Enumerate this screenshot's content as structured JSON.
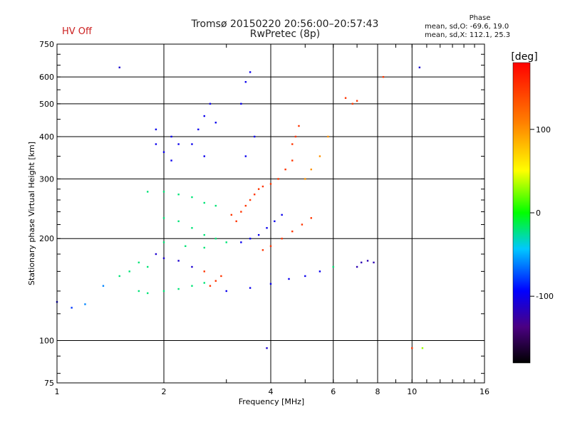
{
  "header": {
    "title_line1": "Tromsø 20150220 20:56:00–20:57:43",
    "title_line2": "RwPretec (8p)",
    "status": "HV Off"
  },
  "phase_info": {
    "title": "Phase",
    "line1": "mean, sd,O: -69.6, 19.0",
    "line2": "mean, sd,X: 112.1, 25.3"
  },
  "colorbar": {
    "label": "[deg]",
    "ticks": [
      {
        "value": 100,
        "label": "100"
      },
      {
        "value": 0,
        "label": "0"
      },
      {
        "value": -100,
        "label": "-100"
      }
    ],
    "range": [
      -180,
      180
    ]
  },
  "chart_data": {
    "type": "scatter",
    "xlabel": "Frequency [MHz]",
    "ylabel": "Stationary phase Virtual Height [km]",
    "xscale": "log",
    "yscale": "log",
    "xlim": [
      1,
      16
    ],
    "ylim": [
      75,
      750
    ],
    "xticks": [
      1,
      2,
      4,
      6,
      8,
      10,
      16
    ],
    "yticks": [
      75,
      100,
      200,
      300,
      400,
      500,
      600,
      750
    ],
    "grid": true,
    "series": [
      {
        "values": [
          {
            "x": 1.0,
            "y": 130,
            "p": -100
          },
          {
            "x": 1.1,
            "y": 125,
            "p": -80
          },
          {
            "x": 1.2,
            "y": 128,
            "p": -60
          },
          {
            "x": 1.35,
            "y": 145,
            "p": -60
          },
          {
            "x": 1.5,
            "y": 155,
            "p": -20
          },
          {
            "x": 1.6,
            "y": 160,
            "p": -20
          },
          {
            "x": 1.7,
            "y": 170,
            "p": -20
          },
          {
            "x": 1.8,
            "y": 165,
            "p": -20
          },
          {
            "x": 1.9,
            "y": 180,
            "p": -110
          },
          {
            "x": 2.0,
            "y": 175,
            "p": -110
          },
          {
            "x": 2.2,
            "y": 172,
            "p": -110
          },
          {
            "x": 2.4,
            "y": 165,
            "p": -110
          },
          {
            "x": 1.7,
            "y": 140,
            "p": -20
          },
          {
            "x": 1.8,
            "y": 138,
            "p": -20
          },
          {
            "x": 2.0,
            "y": 140,
            "p": -20
          },
          {
            "x": 2.2,
            "y": 142,
            "p": -20
          },
          {
            "x": 2.4,
            "y": 145,
            "p": -20
          },
          {
            "x": 2.6,
            "y": 148,
            "p": -20
          },
          {
            "x": 1.8,
            "y": 275,
            "p": -20
          },
          {
            "x": 2.0,
            "y": 275,
            "p": -20
          },
          {
            "x": 2.2,
            "y": 270,
            "p": -20
          },
          {
            "x": 2.4,
            "y": 265,
            "p": -20
          },
          {
            "x": 2.6,
            "y": 255,
            "p": -20
          },
          {
            "x": 2.8,
            "y": 250,
            "p": -20
          },
          {
            "x": 2.0,
            "y": 230,
            "p": -20
          },
          {
            "x": 2.2,
            "y": 225,
            "p": -20
          },
          {
            "x": 2.4,
            "y": 215,
            "p": -20
          },
          {
            "x": 2.6,
            "y": 205,
            "p": -20
          },
          {
            "x": 2.8,
            "y": 200,
            "p": -20
          },
          {
            "x": 3.0,
            "y": 195,
            "p": -20
          },
          {
            "x": 2.0,
            "y": 195,
            "p": -20
          },
          {
            "x": 2.3,
            "y": 190,
            "p": -20
          },
          {
            "x": 2.6,
            "y": 188,
            "p": -20
          },
          {
            "x": 1.9,
            "y": 380,
            "p": -100
          },
          {
            "x": 2.0,
            "y": 360,
            "p": -100
          },
          {
            "x": 2.1,
            "y": 340,
            "p": -100
          },
          {
            "x": 1.9,
            "y": 420,
            "p": -100
          },
          {
            "x": 2.1,
            "y": 400,
            "p": -100
          },
          {
            "x": 2.2,
            "y": 380,
            "p": -100
          },
          {
            "x": 2.5,
            "y": 420,
            "p": -100
          },
          {
            "x": 2.6,
            "y": 460,
            "p": -100
          },
          {
            "x": 2.7,
            "y": 500,
            "p": -100
          },
          {
            "x": 2.8,
            "y": 440,
            "p": -100
          },
          {
            "x": 2.4,
            "y": 380,
            "p": -100
          },
          {
            "x": 2.6,
            "y": 350,
            "p": -100
          },
          {
            "x": 3.1,
            "y": 235,
            "p": 150
          },
          {
            "x": 3.2,
            "y": 225,
            "p": 150
          },
          {
            "x": 3.3,
            "y": 240,
            "p": 150
          },
          {
            "x": 3.4,
            "y": 250,
            "p": 150
          },
          {
            "x": 3.5,
            "y": 260,
            "p": 150
          },
          {
            "x": 3.6,
            "y": 270,
            "p": 150
          },
          {
            "x": 3.7,
            "y": 280,
            "p": 150
          },
          {
            "x": 3.8,
            "y": 285,
            "p": 150
          },
          {
            "x": 4.0,
            "y": 290,
            "p": 150
          },
          {
            "x": 4.2,
            "y": 300,
            "p": 150
          },
          {
            "x": 4.4,
            "y": 320,
            "p": 150
          },
          {
            "x": 4.6,
            "y": 340,
            "p": 150
          },
          {
            "x": 4.6,
            "y": 380,
            "p": 150
          },
          {
            "x": 4.7,
            "y": 400,
            "p": 150
          },
          {
            "x": 4.8,
            "y": 430,
            "p": 150
          },
          {
            "x": 3.3,
            "y": 195,
            "p": -100
          },
          {
            "x": 3.5,
            "y": 200,
            "p": -100
          },
          {
            "x": 3.7,
            "y": 205,
            "p": -100
          },
          {
            "x": 3.9,
            "y": 215,
            "p": -100
          },
          {
            "x": 4.1,
            "y": 225,
            "p": -100
          },
          {
            "x": 4.3,
            "y": 235,
            "p": -100
          },
          {
            "x": 3.8,
            "y": 185,
            "p": 150
          },
          {
            "x": 4.0,
            "y": 190,
            "p": 150
          },
          {
            "x": 4.3,
            "y": 200,
            "p": 150
          },
          {
            "x": 4.6,
            "y": 210,
            "p": 150
          },
          {
            "x": 4.9,
            "y": 220,
            "p": 150
          },
          {
            "x": 5.2,
            "y": 230,
            "p": 150
          },
          {
            "x": 3.0,
            "y": 140,
            "p": -100
          },
          {
            "x": 3.5,
            "y": 143,
            "p": -100
          },
          {
            "x": 4.0,
            "y": 147,
            "p": -100
          },
          {
            "x": 4.5,
            "y": 152,
            "p": -100
          },
          {
            "x": 5.0,
            "y": 155,
            "p": -100
          },
          {
            "x": 5.5,
            "y": 160,
            "p": -100
          },
          {
            "x": 6.0,
            "y": 165,
            "p": -20
          },
          {
            "x": 2.7,
            "y": 145,
            "p": 150
          },
          {
            "x": 2.8,
            "y": 150,
            "p": 150
          },
          {
            "x": 2.9,
            "y": 155,
            "p": 150
          },
          {
            "x": 2.6,
            "y": 160,
            "p": 150
          },
          {
            "x": 7.0,
            "y": 165,
            "p": -120
          },
          {
            "x": 7.2,
            "y": 170,
            "p": -120
          },
          {
            "x": 7.5,
            "y": 172,
            "p": -120
          },
          {
            "x": 7.8,
            "y": 170,
            "p": -120
          },
          {
            "x": 6.5,
            "y": 520,
            "p": 150
          },
          {
            "x": 6.8,
            "y": 500,
            "p": 150
          },
          {
            "x": 7.0,
            "y": 510,
            "p": 150
          },
          {
            "x": 5.0,
            "y": 300,
            "p": 100
          },
          {
            "x": 5.2,
            "y": 320,
            "p": 100
          },
          {
            "x": 5.5,
            "y": 350,
            "p": 100
          },
          {
            "x": 5.8,
            "y": 400,
            "p": 100
          },
          {
            "x": 3.4,
            "y": 350,
            "p": -100
          },
          {
            "x": 3.6,
            "y": 400,
            "p": -100
          },
          {
            "x": 3.3,
            "y": 500,
            "p": -100
          },
          {
            "x": 3.4,
            "y": 580,
            "p": -100
          },
          {
            "x": 3.5,
            "y": 620,
            "p": -100
          },
          {
            "x": 8.3,
            "y": 600,
            "p": 150
          },
          {
            "x": 10.5,
            "y": 640,
            "p": -110
          },
          {
            "x": 1.5,
            "y": 640,
            "p": -110
          },
          {
            "x": 10.0,
            "y": 95,
            "p": 150
          },
          {
            "x": 10.7,
            "y": 95,
            "p": 30
          },
          {
            "x": 3.9,
            "y": 95,
            "p": -110
          }
        ]
      }
    ]
  }
}
